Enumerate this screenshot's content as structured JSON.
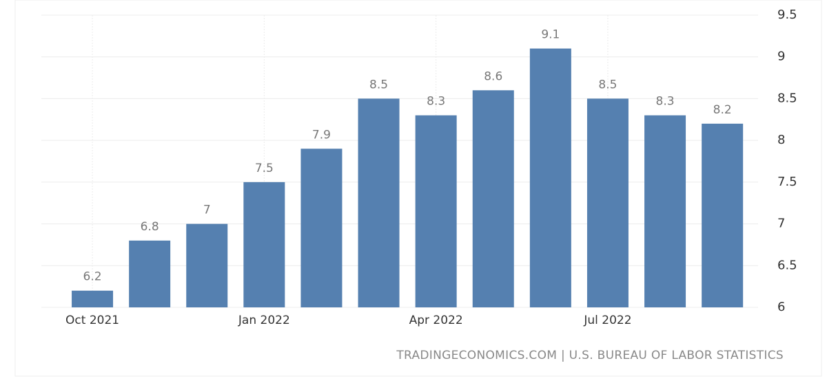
{
  "chart_data": {
    "type": "bar",
    "categories": [
      "Oct 2021",
      null,
      null,
      "Jan 2022",
      null,
      null,
      "Apr 2022",
      null,
      null,
      "Jul 2022",
      null,
      null
    ],
    "values": [
      6.2,
      6.8,
      7,
      7.5,
      7.9,
      8.5,
      8.3,
      8.6,
      9.1,
      8.5,
      8.3,
      8.2
    ],
    "color": "#5580b0",
    "ylim": [
      6,
      9.5
    ],
    "yticks": [
      6,
      6.5,
      7,
      7.5,
      8,
      8.5,
      9,
      9.5
    ],
    "grid": true,
    "source": "TRADINGECONOMICS.COM | U.S. BUREAU OF LABOR STATISTICS"
  }
}
